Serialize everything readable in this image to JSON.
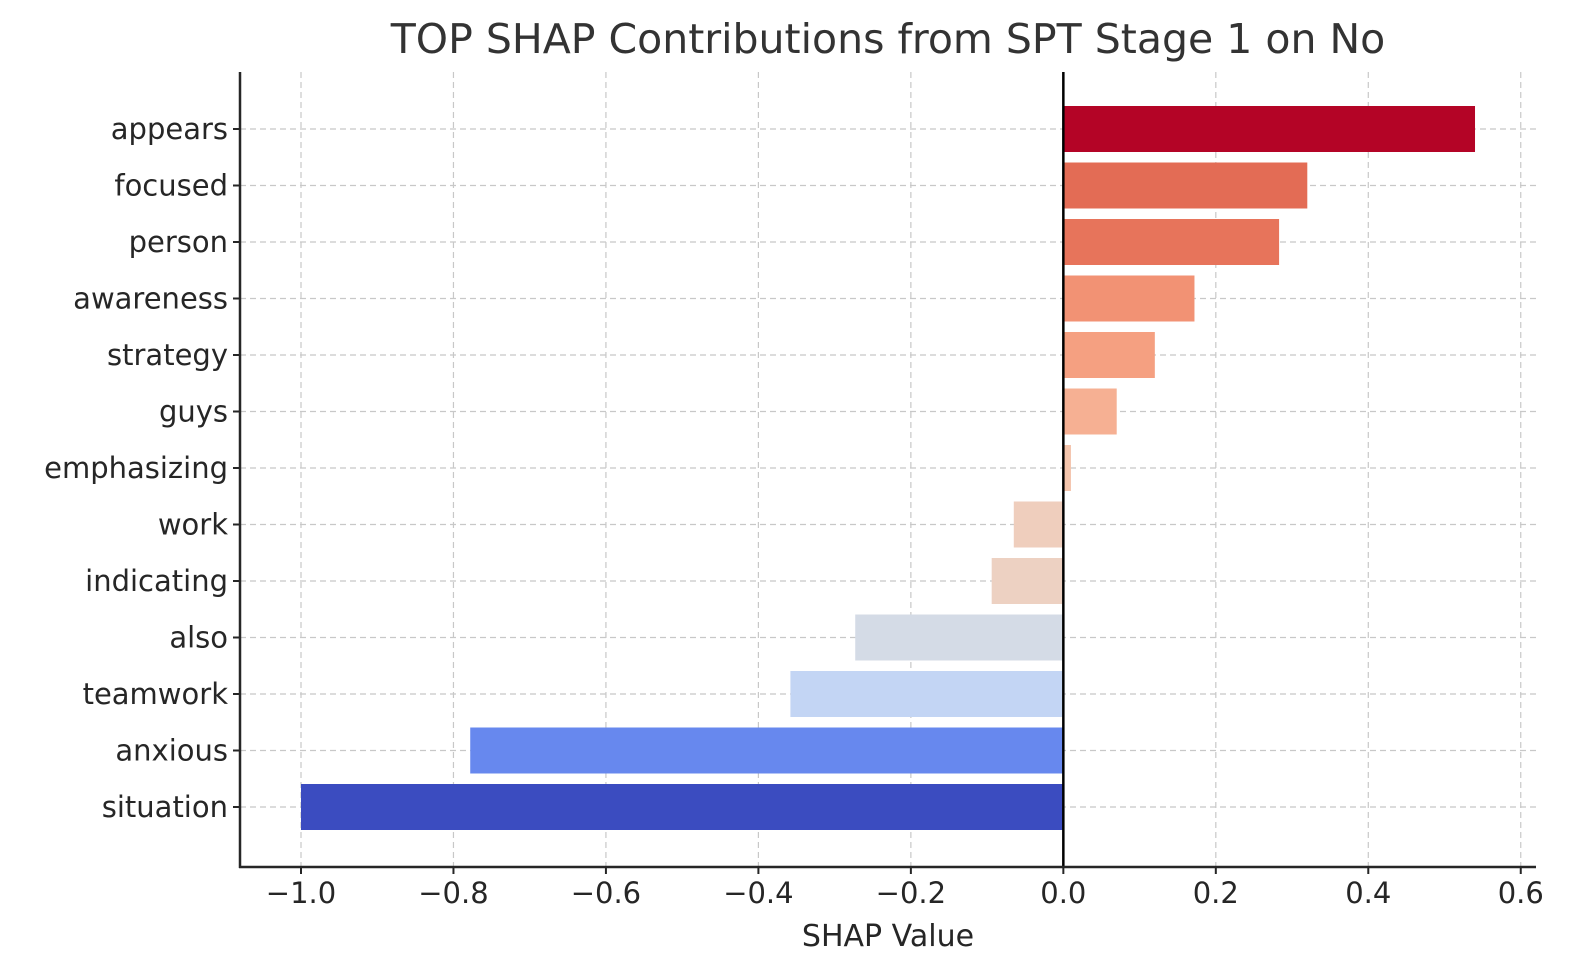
{
  "chart_data": {
    "type": "bar",
    "orientation": "horizontal",
    "title": "TOP SHAP Contributions from SPT Stage 1 on No",
    "xlabel": "SHAP Value",
    "ylabel": "",
    "xlim": [
      -1.08,
      0.62
    ],
    "grid": true,
    "xticks": [
      -1.0,
      -0.8,
      -0.6,
      -0.4,
      -0.2,
      0.0,
      0.2,
      0.4,
      0.6
    ],
    "xtick_labels": [
      "−1.0",
      "−0.8",
      "−0.6",
      "−0.4",
      "−0.2",
      "0.0",
      "0.2",
      "0.4",
      "0.6"
    ],
    "categories": [
      "appears",
      "focused",
      "person",
      "awareness",
      "strategy",
      "guys",
      "emphasizing",
      "work",
      "indicating",
      "also",
      "teamwork",
      "anxious",
      "situation"
    ],
    "values": [
      0.54,
      0.32,
      0.283,
      0.172,
      0.12,
      0.07,
      0.01,
      -0.065,
      -0.094,
      -0.273,
      -0.358,
      -0.778,
      -1.0
    ],
    "colors": [
      "#b40426",
      "#e36c55",
      "#e7745b",
      "#f29274",
      "#f5a081",
      "#f6b093",
      "#f4c5ad",
      "#efcebd",
      "#edd1c2",
      "#d4dbe6",
      "#c3d5f4",
      "#6788ee",
      "#3b4cc0"
    ]
  }
}
